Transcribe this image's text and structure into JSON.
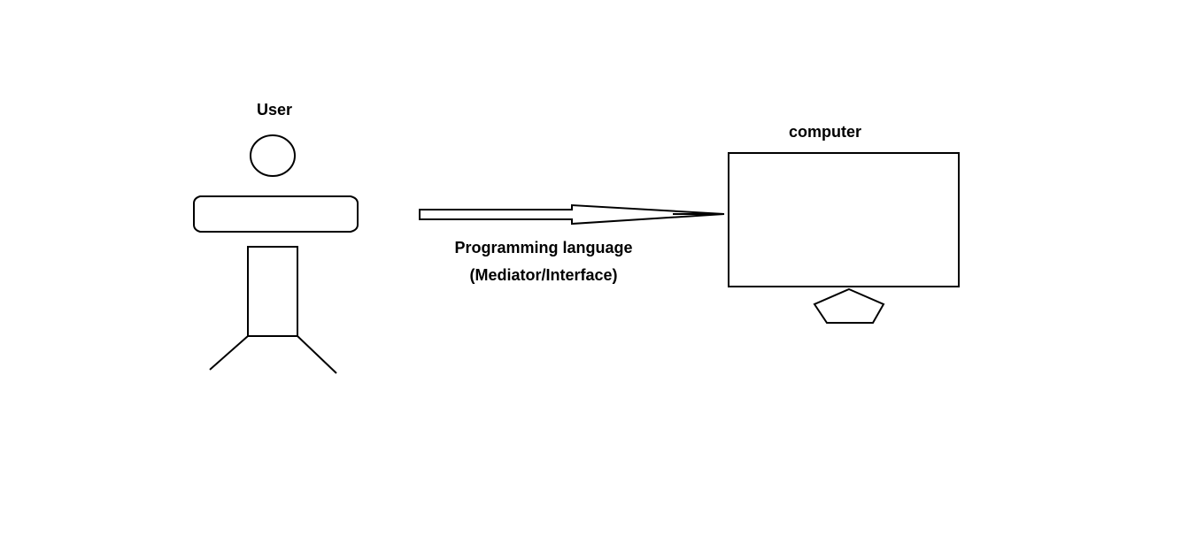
{
  "diagram": {
    "user": {
      "label": "User"
    },
    "connector": {
      "line1": "Programming language",
      "line2": "(Mediator/Interface)"
    },
    "computer": {
      "label": "computer"
    },
    "colors": {
      "stroke": "#000000",
      "background": "#ffffff"
    }
  }
}
